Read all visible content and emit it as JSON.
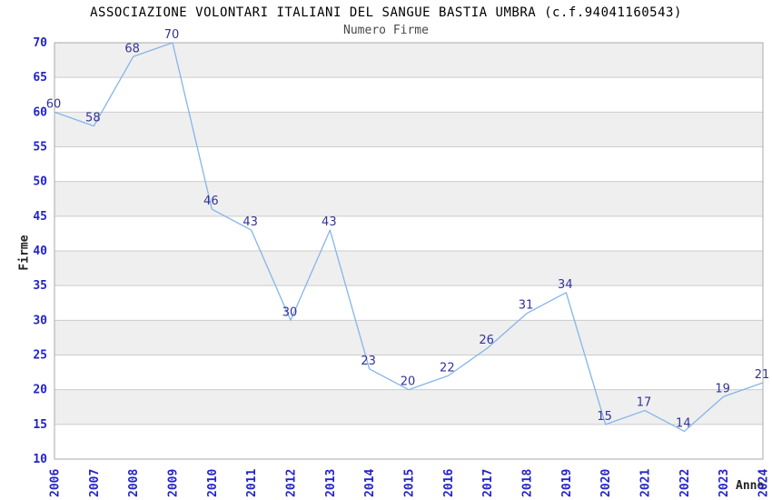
{
  "chart_data": {
    "type": "line",
    "title": "ASSOCIAZIONE VOLONTARI ITALIANI DEL SANGUE BASTIA UMBRA (c.f.94041160543)",
    "subtitle": "Numero Firme",
    "xlabel": "Anno",
    "ylabel": "Firme",
    "x": [
      2006,
      2007,
      2008,
      2009,
      2010,
      2011,
      2012,
      2013,
      2014,
      2015,
      2016,
      2017,
      2018,
      2019,
      2020,
      2021,
      2022,
      2023,
      2024
    ],
    "values": [
      60,
      58,
      68,
      70,
      46,
      43,
      30,
      43,
      23,
      20,
      22,
      26,
      31,
      34,
      15,
      17,
      14,
      19,
      21
    ],
    "ylim": [
      10,
      70
    ],
    "ytick_step": 5,
    "yticks": [
      10,
      15,
      20,
      25,
      30,
      35,
      40,
      45,
      50,
      55,
      60,
      65,
      70
    ],
    "grid": true,
    "legend_position": "none",
    "point_labels_shown": true,
    "colors": {
      "line": "#85b5ea",
      "point_label": "#333399",
      "tick_label": "#2323cc",
      "band": "#efefef",
      "band_alt": "#ffffff",
      "gridline": "#cccccc",
      "plot_border": "#aaaaaa",
      "title": "#000000",
      "subtitle": "#484848",
      "axis_label": "#222222",
      "background": "#ffffff"
    }
  }
}
